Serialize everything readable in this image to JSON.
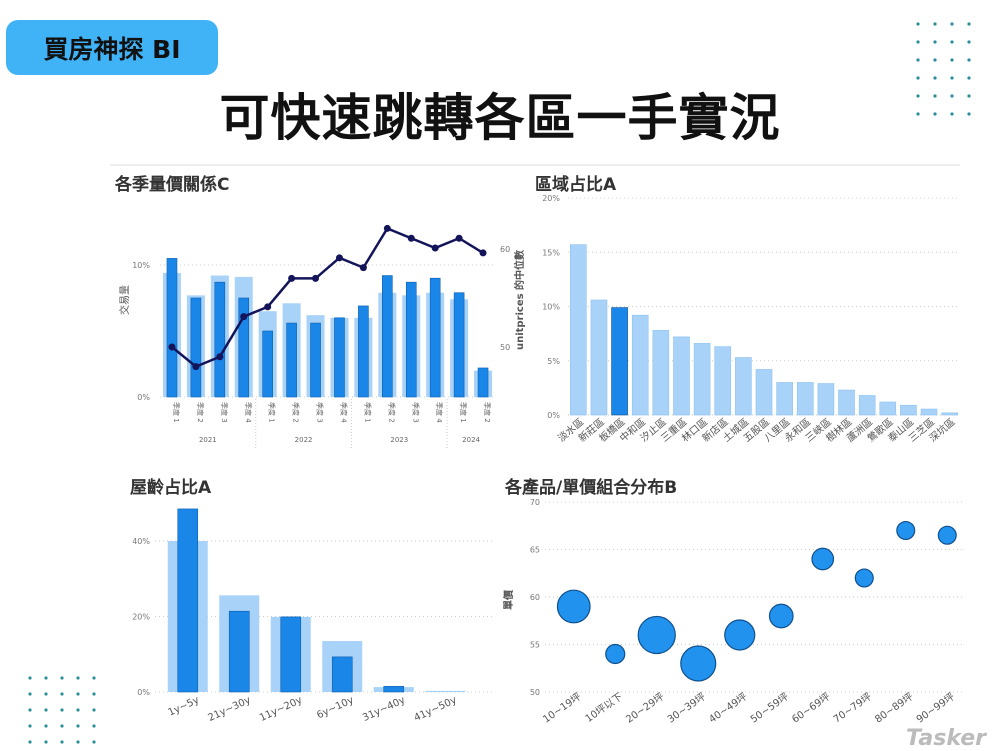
{
  "badge": "買房神探 BI",
  "headline": "可快速跳轉各區一手實況",
  "watermark": "Tasker",
  "colors": {
    "dark_bar": "#1a86e8",
    "light_bar": "#a8d2f8",
    "line": "#14145a",
    "badge": "#40b3f7",
    "dots": "#2a8f9a"
  },
  "chart_data": [
    {
      "type": "bar+line",
      "title": "各季量價關係C",
      "ylabel": "交易量",
      "y2label": "unitprices 的中位數",
      "ylim": [
        0,
        10
      ],
      "y_ticks": [
        "0%",
        "10%"
      ],
      "y2lim": [
        50,
        60
      ],
      "y2_ticks": [
        "50",
        "60"
      ],
      "quarter_labels": [
        "季度 1",
        "季度 2",
        "季度 3",
        "季度 4",
        "季度 1",
        "季度 2",
        "季度 3",
        "季度 4",
        "季度 1",
        "季度 2",
        "季度 3",
        "季度 4",
        "季度 1",
        "季度 2"
      ],
      "years": [
        {
          "label": "2021",
          "span": 4
        },
        {
          "label": "2022",
          "span": 4
        },
        {
          "label": "2023",
          "span": 4
        },
        {
          "label": "2024",
          "span": 2
        }
      ],
      "series": [
        {
          "kind": "light_bar",
          "values": [
            9.4,
            7.7,
            9.2,
            9.1,
            6.5,
            7.1,
            6.2,
            6.0,
            6.0,
            7.9,
            7.7,
            7.9,
            7.4,
            2.0
          ]
        },
        {
          "kind": "dark_bar",
          "values": [
            10.5,
            7.5,
            8.7,
            7.5,
            5.0,
            5.6,
            5.6,
            6.0,
            6.9,
            9.2,
            8.7,
            9.0,
            7.9,
            2.2
          ]
        },
        {
          "kind": "line",
          "axis": "right",
          "values": [
            50.0,
            48.0,
            49.0,
            53.1,
            54.1,
            57.0,
            57.0,
            59.1,
            58.1,
            62.1,
            61.1,
            60.1,
            61.1,
            59.6
          ]
        }
      ]
    },
    {
      "type": "bar",
      "title": "區域占比A",
      "ylim": [
        0,
        20
      ],
      "y_ticks": [
        "0%",
        "5%",
        "10%",
        "15%",
        "20%"
      ],
      "categories": [
        "淡水區",
        "新莊區",
        "板橋區",
        "中和區",
        "汐止區",
        "三重區",
        "林口區",
        "新店區",
        "土城區",
        "五股區",
        "八里區",
        "永和區",
        "三峽區",
        "樹林區",
        "蘆洲區",
        "鶯歌區",
        "泰山區",
        "三芝區",
        "深坑區"
      ],
      "values": [
        15.7,
        10.6,
        9.9,
        9.2,
        7.8,
        7.2,
        6.6,
        6.3,
        5.3,
        4.2,
        3.0,
        3.0,
        2.9,
        2.3,
        1.8,
        1.2,
        0.9,
        0.55,
        0.2
      ],
      "highlighted": "板橋區"
    },
    {
      "type": "bar",
      "title": "屋齡占比A",
      "ylim": [
        0,
        50
      ],
      "y_ticks": [
        "0%",
        "20%",
        "40%"
      ],
      "categories": [
        "1y~5y",
        "21y~30y",
        "11y~20y",
        "6y~10y",
        "31y~40y",
        "41y~50y"
      ],
      "series": [
        {
          "kind": "light_bar",
          "values": [
            40,
            25.6,
            19.9,
            13.5,
            1.3,
            0.3
          ]
        },
        {
          "kind": "dark_bar",
          "values": [
            48.5,
            21.4,
            19.9,
            9.3,
            1.5,
            0
          ]
        }
      ]
    },
    {
      "type": "scatter",
      "title": "各產品/單價組合分布B",
      "ylabel": "單價",
      "ylim": [
        50,
        70
      ],
      "y_ticks": [
        "50",
        "55",
        "60",
        "65",
        "70"
      ],
      "categories": [
        "10~19坪",
        "10坪以下",
        "20~29坪",
        "30~39坪",
        "40~49坪",
        "50~59坪",
        "60~69坪",
        "70~79坪",
        "80~89坪",
        "90~99坪"
      ],
      "values": [
        59,
        54,
        56,
        53,
        56,
        58,
        64,
        62,
        67,
        66.5
      ],
      "bubble_size": [
        5,
        1,
        7,
        6,
        4,
        2,
        1.5,
        0.8,
        0.8,
        0.8
      ]
    }
  ]
}
